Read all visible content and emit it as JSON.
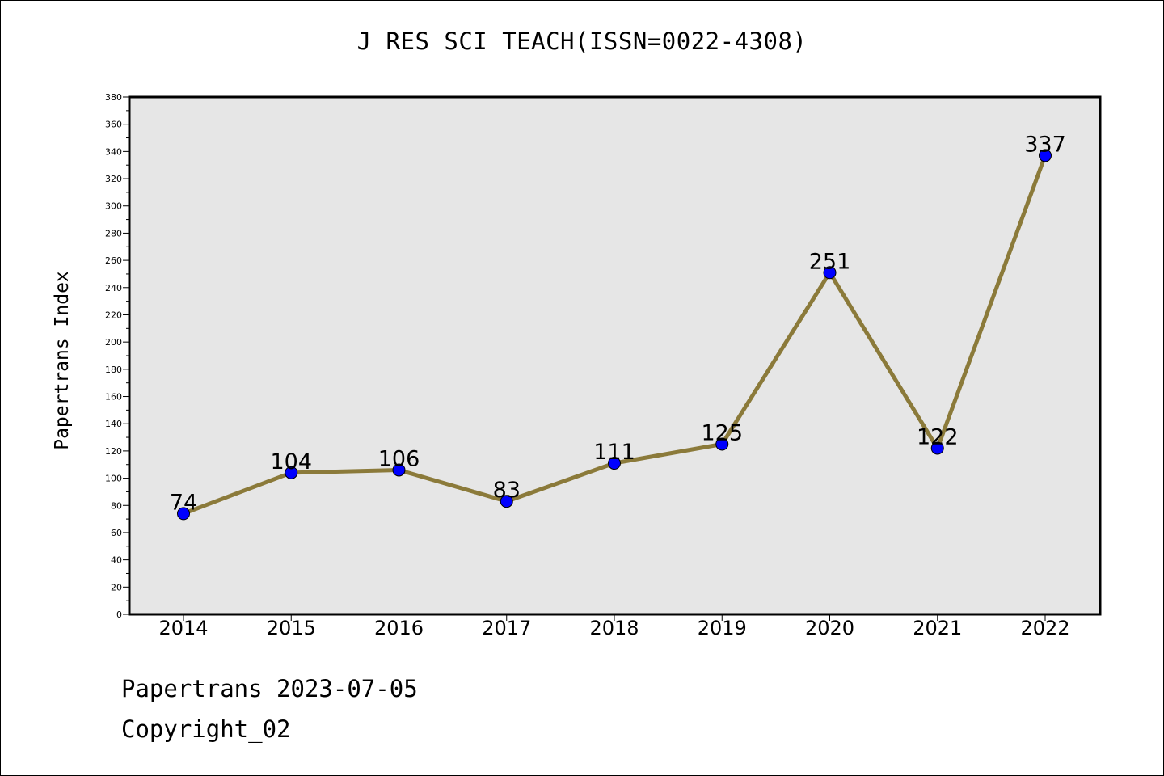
{
  "chart_data": {
    "type": "line",
    "title": "J RES SCI TEACH(ISSN=0022-4308)",
    "xlabel": "",
    "ylabel": "Papertrans Index",
    "categories": [
      "2014",
      "2015",
      "2016",
      "2017",
      "2018",
      "2019",
      "2020",
      "2021",
      "2022"
    ],
    "series": [
      {
        "values": [
          74,
          104,
          106,
          83,
          111,
          125,
          251,
          122,
          337
        ],
        "line_color": "#8b7a3a",
        "marker_color": "#0000ff"
      }
    ],
    "ylim": [
      0,
      380
    ],
    "y_ticks": [
      0,
      20,
      40,
      60,
      80,
      100,
      120,
      140,
      160,
      180,
      200,
      220,
      240,
      260,
      280,
      300,
      320,
      340,
      360,
      380
    ],
    "grid": false,
    "plot_background": "#e6e6e6",
    "data_labels": true
  },
  "footer": {
    "line1": "Papertrans 2023-07-05",
    "line2": "Copyright_02"
  }
}
